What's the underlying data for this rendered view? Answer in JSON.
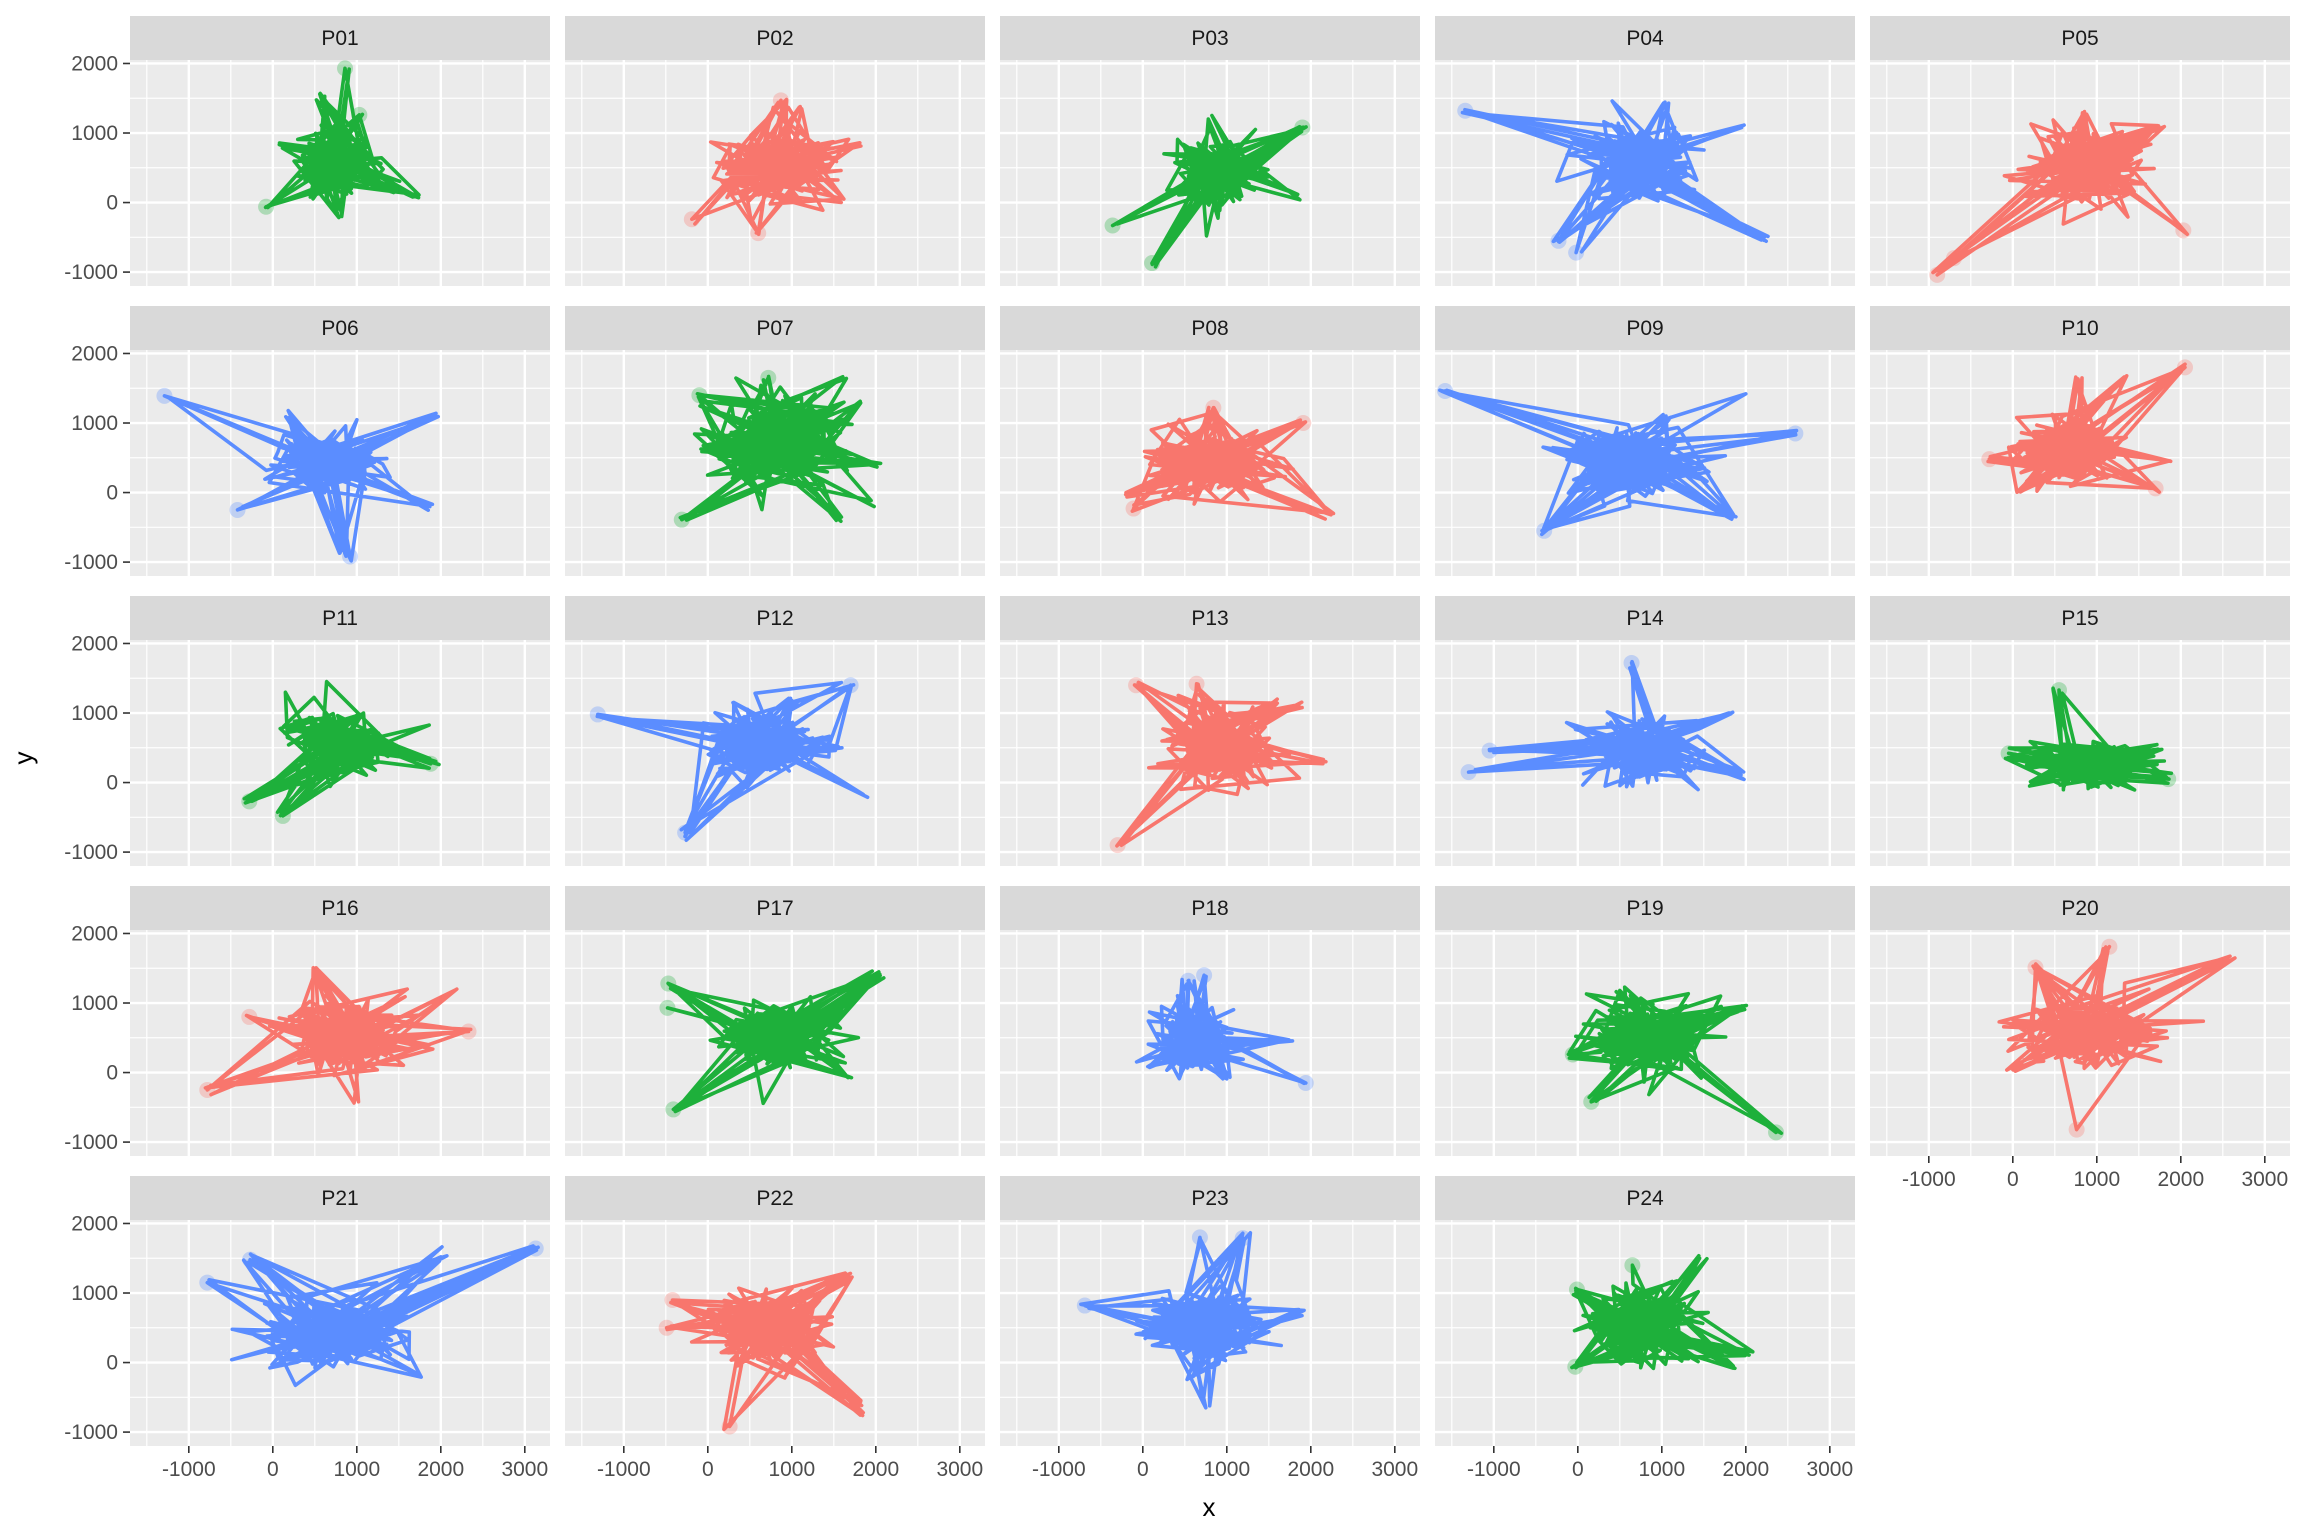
{
  "chart_data": {
    "type": "line",
    "layout": "facet_wrap",
    "ncol": 5,
    "xlabel": "x",
    "ylabel": "y",
    "xlim": [
      -1700,
      3300
    ],
    "ylim": [
      -1200,
      2050
    ],
    "xticks": [
      -1000,
      0,
      1000,
      2000,
      3000
    ],
    "yticks": [
      -1000,
      0,
      1000,
      2000
    ],
    "xtick_labels": [
      "-1000",
      "0",
      "1000",
      "2000",
      "3000"
    ],
    "ytick_labels": [
      "-1000",
      "0",
      "1000",
      "2000"
    ],
    "grid": true,
    "legend": "none",
    "colors": {
      "red": "#F8766D",
      "green": "#1EB03B",
      "blue": "#5B8DFF",
      "panel_bg": "#EBEBEB",
      "strip_bg": "#D9D9D9",
      "grid": "#FFFFFF"
    },
    "panels": [
      {
        "label": "P01",
        "color": "green",
        "center": [
          720,
          560
        ],
        "spread": [
          480,
          380
        ],
        "extremes": [
          [
            -80,
            -60
          ],
          [
            860,
            1930
          ],
          [
            1030,
            1260
          ],
          [
            1740,
            110
          ],
          [
            820,
            -200
          ],
          [
            560,
            1560
          ]
        ]
      },
      {
        "label": "P02",
        "color": "red",
        "center": [
          830,
          500
        ],
        "spread": [
          550,
          420
        ],
        "extremes": [
          [
            -190,
            -240
          ],
          [
            600,
            -440
          ],
          [
            870,
            1470
          ],
          [
            1810,
            860
          ],
          [
            1620,
            50
          ],
          [
            1100,
            1380
          ]
        ]
      },
      {
        "label": "P03",
        "color": "green",
        "center": [
          900,
          450
        ],
        "spread": [
          450,
          420
        ],
        "extremes": [
          [
            -360,
            -330
          ],
          [
            110,
            -870
          ],
          [
            1900,
            1080
          ],
          [
            1870,
            40
          ],
          [
            1340,
            1050
          ],
          [
            780,
            1200
          ]
        ]
      },
      {
        "label": "P04",
        "color": "blue",
        "center": [
          650,
          580
        ],
        "spread": [
          650,
          450
        ],
        "extremes": [
          [
            -1340,
            1320
          ],
          [
            -230,
            -550
          ],
          [
            -20,
            -720
          ],
          [
            2200,
            -510
          ],
          [
            1950,
            1080
          ],
          [
            410,
            1460
          ],
          [
            1020,
            1430
          ]
        ]
      },
      {
        "label": "P05",
        "color": "red",
        "center": [
          850,
          560
        ],
        "spread": [
          550,
          420
        ],
        "extremes": [
          [
            -900,
            -1040
          ],
          [
            -700,
            -800
          ],
          [
            2030,
            -400
          ],
          [
            1720,
            1080
          ],
          [
            830,
            1290
          ],
          [
            1430,
            180
          ]
        ]
      },
      {
        "label": "P06",
        "color": "blue",
        "center": [
          620,
          430
        ],
        "spread": [
          520,
          330
        ],
        "extremes": [
          [
            -1290,
            1390
          ],
          [
            -420,
            -250
          ],
          [
            920,
            -920
          ],
          [
            1940,
            1110
          ],
          [
            1870,
            -200
          ],
          [
            200,
            1060
          ]
        ]
      },
      {
        "label": "P07",
        "color": "green",
        "center": [
          850,
          680
        ],
        "spread": [
          700,
          560
        ],
        "extremes": [
          [
            -310,
            -390
          ],
          [
            -100,
            1400
          ],
          [
            720,
            1650
          ],
          [
            1650,
            1640
          ],
          [
            2000,
            400
          ],
          [
            1980,
            -200
          ],
          [
            1530,
            -400
          ]
        ]
      },
      {
        "label": "P08",
        "color": "red",
        "center": [
          820,
          430
        ],
        "spread": [
          620,
          400
        ],
        "extremes": [
          [
            -110,
            -230
          ],
          [
            840,
            1220
          ],
          [
            1910,
            1000
          ],
          [
            2240,
            -320
          ],
          [
            1250,
            -100
          ],
          [
            -200,
            0
          ]
        ]
      },
      {
        "label": "P09",
        "color": "blue",
        "center": [
          580,
          450
        ],
        "spread": [
          600,
          420
        ],
        "extremes": [
          [
            -1580,
            1460
          ],
          [
            -400,
            -550
          ],
          [
            2590,
            850
          ],
          [
            1850,
            -350
          ],
          [
            2000,
            1420
          ],
          [
            1050,
            1100
          ]
        ]
      },
      {
        "label": "P10",
        "color": "red",
        "center": [
          640,
          590
        ],
        "spread": [
          520,
          420
        ],
        "extremes": [
          [
            -280,
            480
          ],
          [
            2050,
            1800
          ],
          [
            1700,
            60
          ],
          [
            1880,
            450
          ],
          [
            750,
            1660
          ],
          [
            1320,
            1610
          ],
          [
            90,
            10
          ]
        ]
      },
      {
        "label": "P11",
        "color": "green",
        "center": [
          780,
          560
        ],
        "spread": [
          520,
          380
        ],
        "extremes": [
          [
            -280,
            -270
          ],
          [
            120,
            -480
          ],
          [
            1880,
            270
          ],
          [
            640,
            1450
          ],
          [
            150,
            1300
          ],
          [
            1080,
            1000
          ]
        ]
      },
      {
        "label": "P12",
        "color": "blue",
        "center": [
          700,
          520
        ],
        "spread": [
          600,
          420
        ],
        "extremes": [
          [
            -1310,
            980
          ],
          [
            -270,
            -720
          ],
          [
            1700,
            1400
          ],
          [
            1850,
            -170
          ],
          [
            1000,
            1180
          ],
          [
            300,
            1150
          ]
        ]
      },
      {
        "label": "P13",
        "color": "red",
        "center": [
          900,
          500
        ],
        "spread": [
          550,
          460
        ],
        "extremes": [
          [
            -300,
            -900
          ],
          [
            640,
            1420
          ],
          [
            -80,
            1400
          ],
          [
            1860,
            1120
          ],
          [
            2180,
            300
          ],
          [
            1600,
            1200
          ]
        ]
      },
      {
        "label": "P14",
        "color": "blue",
        "center": [
          700,
          480
        ],
        "spread": [
          520,
          350
        ],
        "extremes": [
          [
            -1300,
            150
          ],
          [
            -1050,
            460
          ],
          [
            640,
            1720
          ],
          [
            1800,
            1000
          ],
          [
            1900,
            100
          ],
          [
            1280,
            80
          ]
        ]
      },
      {
        "label": "P15",
        "color": "green",
        "center": [
          900,
          260
        ],
        "spread": [
          600,
          260
        ],
        "extremes": [
          [
            -50,
            420
          ],
          [
            550,
            1330
          ],
          [
            1850,
            50
          ],
          [
            1730,
            480
          ],
          [
            200,
            -50
          ]
        ]
      },
      {
        "label": "P16",
        "color": "red",
        "center": [
          860,
          520
        ],
        "spread": [
          650,
          400
        ],
        "extremes": [
          [
            -780,
            -250
          ],
          [
            -280,
            800
          ],
          [
            2330,
            590
          ],
          [
            2190,
            1200
          ],
          [
            520,
            1500
          ],
          [
            1020,
            -420
          ],
          [
            1600,
            1200
          ]
        ]
      },
      {
        "label": "P17",
        "color": "green",
        "center": [
          850,
          560
        ],
        "spread": [
          600,
          380
        ],
        "extremes": [
          [
            -470,
            1280
          ],
          [
            -480,
            930
          ],
          [
            -410,
            -530
          ],
          [
            2010,
            1400
          ],
          [
            1650,
            -50
          ],
          [
            1400,
            900
          ]
        ]
      },
      {
        "label": "P18",
        "color": "blue",
        "center": [
          620,
          500
        ],
        "spread": [
          380,
          420
        ],
        "extremes": [
          [
            540,
            1320
          ],
          [
            730,
            1400
          ],
          [
            1940,
            -150
          ],
          [
            1740,
            470
          ],
          [
            80,
            90
          ],
          [
            1000,
            -90
          ]
        ]
      },
      {
        "label": "P19",
        "color": "green",
        "center": [
          820,
          520
        ],
        "spread": [
          650,
          450
        ],
        "extremes": [
          [
            -60,
            260
          ],
          [
            160,
            -420
          ],
          [
            2360,
            -860
          ],
          [
            1950,
            920
          ],
          [
            1700,
            1100
          ],
          [
            500,
            1180
          ]
        ]
      },
      {
        "label": "P20",
        "color": "red",
        "center": [
          900,
          560
        ],
        "spread": [
          650,
          400
        ],
        "extremes": [
          [
            270,
            1510
          ],
          [
            760,
            -820
          ],
          [
            1150,
            1810
          ],
          [
            2560,
            1640
          ],
          [
            1760,
            160
          ],
          [
            1840,
            500
          ],
          [
            30,
            20
          ]
        ]
      },
      {
        "label": "P21",
        "color": "blue",
        "center": [
          700,
          420
        ],
        "spread": [
          700,
          400
        ],
        "extremes": [
          [
            -780,
            1150
          ],
          [
            -270,
            1480
          ],
          [
            3130,
            1640
          ],
          [
            2000,
            1520
          ],
          [
            1750,
            -180
          ],
          [
            -10,
            -30
          ]
        ]
      },
      {
        "label": "P22",
        "color": "red",
        "center": [
          720,
          500
        ],
        "spread": [
          580,
          420
        ],
        "extremes": [
          [
            -490,
            500
          ],
          [
            -420,
            900
          ],
          [
            260,
            -920
          ],
          [
            1820,
            -560
          ],
          [
            1850,
            -720
          ],
          [
            1640,
            1280
          ]
        ]
      },
      {
        "label": "P23",
        "color": "blue",
        "center": [
          700,
          560
        ],
        "spread": [
          600,
          420
        ],
        "extremes": [
          [
            -690,
            820
          ],
          [
            680,
            1800
          ],
          [
            1190,
            1790
          ],
          [
            1920,
            750
          ],
          [
            750,
            -650
          ],
          [
            600,
            -200
          ]
        ]
      },
      {
        "label": "P24",
        "color": "green",
        "center": [
          760,
          500
        ],
        "spread": [
          520,
          450
        ],
        "extremes": [
          [
            -30,
            -60
          ],
          [
            -10,
            1050
          ],
          [
            650,
            1400
          ],
          [
            1450,
            1500
          ],
          [
            1990,
            100
          ],
          [
            1850,
            -80
          ]
        ]
      }
    ]
  }
}
